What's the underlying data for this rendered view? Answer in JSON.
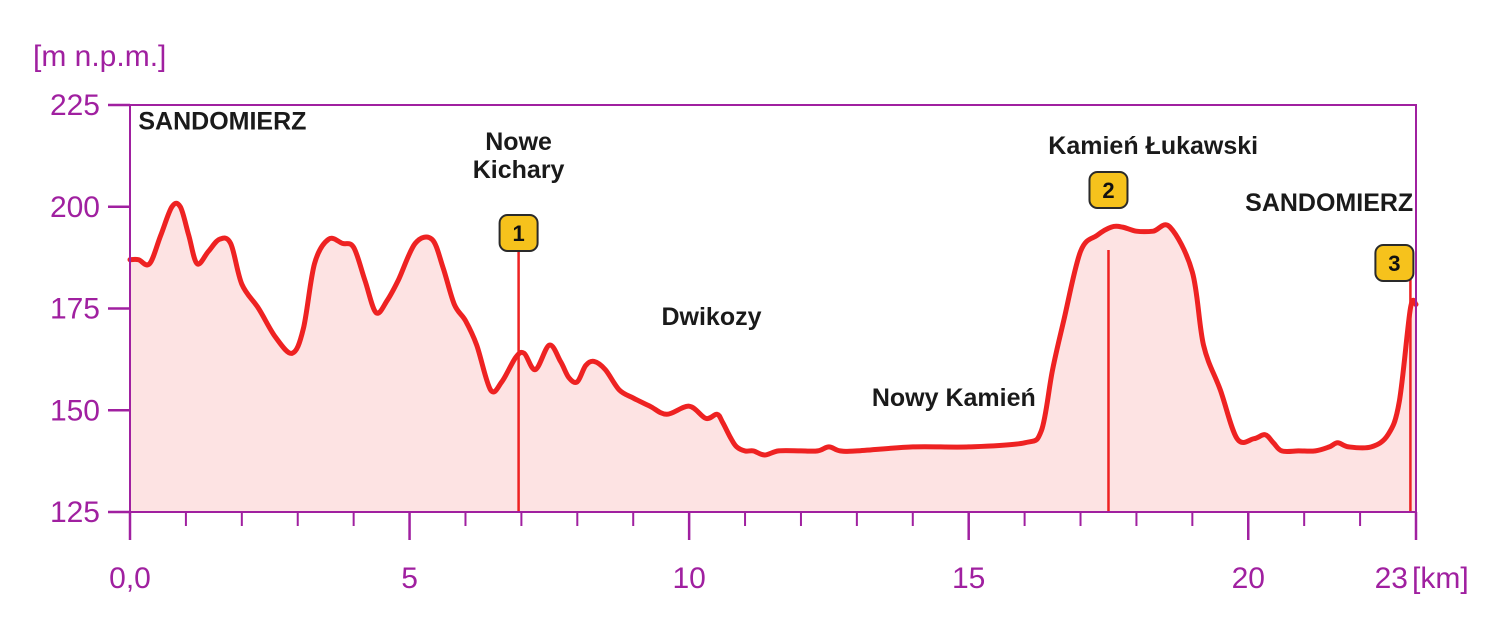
{
  "chart_data": {
    "type": "area",
    "ylabel": "[m n.p.m.]",
    "xunit": "[km]",
    "xlim": [
      0,
      23
    ],
    "ylim": [
      125,
      225
    ],
    "y_ticks": [
      125,
      150,
      175,
      200,
      225
    ],
    "x_tick_labels": [
      {
        "x": 0,
        "label": "0,0"
      },
      {
        "x": 5,
        "label": "5"
      },
      {
        "x": 10,
        "label": "10"
      },
      {
        "x": 15,
        "label": "15"
      },
      {
        "x": 20,
        "label": "20"
      },
      {
        "x": 23,
        "label": "23"
      }
    ],
    "minor_x_step": 1,
    "colors": {
      "axis": "#a020a0",
      "line": "#ee2222",
      "fill": "#fde3e3",
      "marker_bg": "#f6c21c"
    },
    "series": [
      {
        "x": [
          0,
          0.15,
          0.35,
          0.55,
          0.75,
          0.9,
          1.05,
          1.2,
          1.4,
          1.6,
          1.8,
          2.0,
          2.3,
          2.6,
          2.9,
          3.1,
          3.3,
          3.55,
          3.8,
          4.0,
          4.2,
          4.4,
          4.6,
          4.8,
          5.1,
          5.4,
          5.6,
          5.8,
          6.0,
          6.2,
          6.45,
          6.65,
          6.9,
          7.05,
          7.25,
          7.5,
          7.7,
          7.85,
          8.0,
          8.15,
          8.3,
          8.5,
          8.75,
          9.0,
          9.3,
          9.6,
          10.0,
          10.3,
          10.5,
          10.6,
          10.75,
          10.85,
          11.0,
          11.15,
          11.35,
          11.6,
          12.0,
          12.3,
          12.5,
          12.7,
          13.0,
          14.0,
          15.0,
          16.0,
          16.3,
          16.5,
          16.7,
          17.0,
          17.3,
          17.55,
          17.75,
          18.0,
          18.3,
          18.6,
          19.0,
          19.2,
          19.5,
          19.8,
          20.1,
          20.3,
          20.45,
          20.6,
          20.9,
          21.2,
          21.45,
          21.6,
          21.8,
          22.2,
          22.5,
          22.7,
          22.9,
          23.0
        ],
        "y": [
          187,
          187,
          186,
          193,
          200,
          200,
          193,
          186,
          189,
          192,
          191,
          181,
          175,
          168,
          164,
          170,
          186,
          192,
          191,
          190,
          182,
          174,
          177,
          182,
          191,
          192,
          185,
          176,
          172,
          166,
          155,
          157,
          163,
          164,
          160,
          166,
          162,
          158,
          157,
          161,
          162,
          160,
          155,
          153,
          151,
          149,
          151,
          148,
          149,
          147,
          143,
          141,
          140,
          140,
          139,
          140,
          140,
          140,
          141,
          140,
          140,
          141,
          141,
          142,
          145,
          160,
          172,
          189,
          193,
          195,
          195,
          194,
          194,
          195,
          184,
          166,
          155,
          143,
          143,
          144,
          142,
          140,
          140,
          140,
          141,
          142,
          141,
          141,
          144,
          152,
          175,
          176
        ]
      }
    ],
    "markers": [
      {
        "num": "1",
        "x": 6.95
      },
      {
        "num": "2",
        "x": 17.5
      },
      {
        "num": "3",
        "x": 22.9
      }
    ],
    "annotations": [
      {
        "id": "sandomierz-start",
        "lines": [
          "SANDOMIERZ"
        ],
        "x": 0.15,
        "y": 219,
        "anchor": "start"
      },
      {
        "id": "nowe-kichary",
        "lines": [
          "Nowe",
          "Kichary"
        ],
        "x": 6.95,
        "y": 214,
        "anchor": "middle"
      },
      {
        "id": "dwikozy",
        "lines": [
          "Dwikozy"
        ],
        "x": 10.4,
        "y": 171,
        "anchor": "middle"
      },
      {
        "id": "nowy-kamien",
        "lines": [
          "Nowy Kamień"
        ],
        "x": 16.2,
        "y": 151,
        "anchor": "end"
      },
      {
        "id": "kamien-lukawski",
        "lines": [
          "Kamień Łukawski"
        ],
        "x": 18.3,
        "y": 213,
        "anchor": "middle"
      },
      {
        "id": "sandomierz-end",
        "lines": [
          "SANDOMIERZ"
        ],
        "x": 22.95,
        "y": 199,
        "anchor": "end"
      }
    ]
  }
}
